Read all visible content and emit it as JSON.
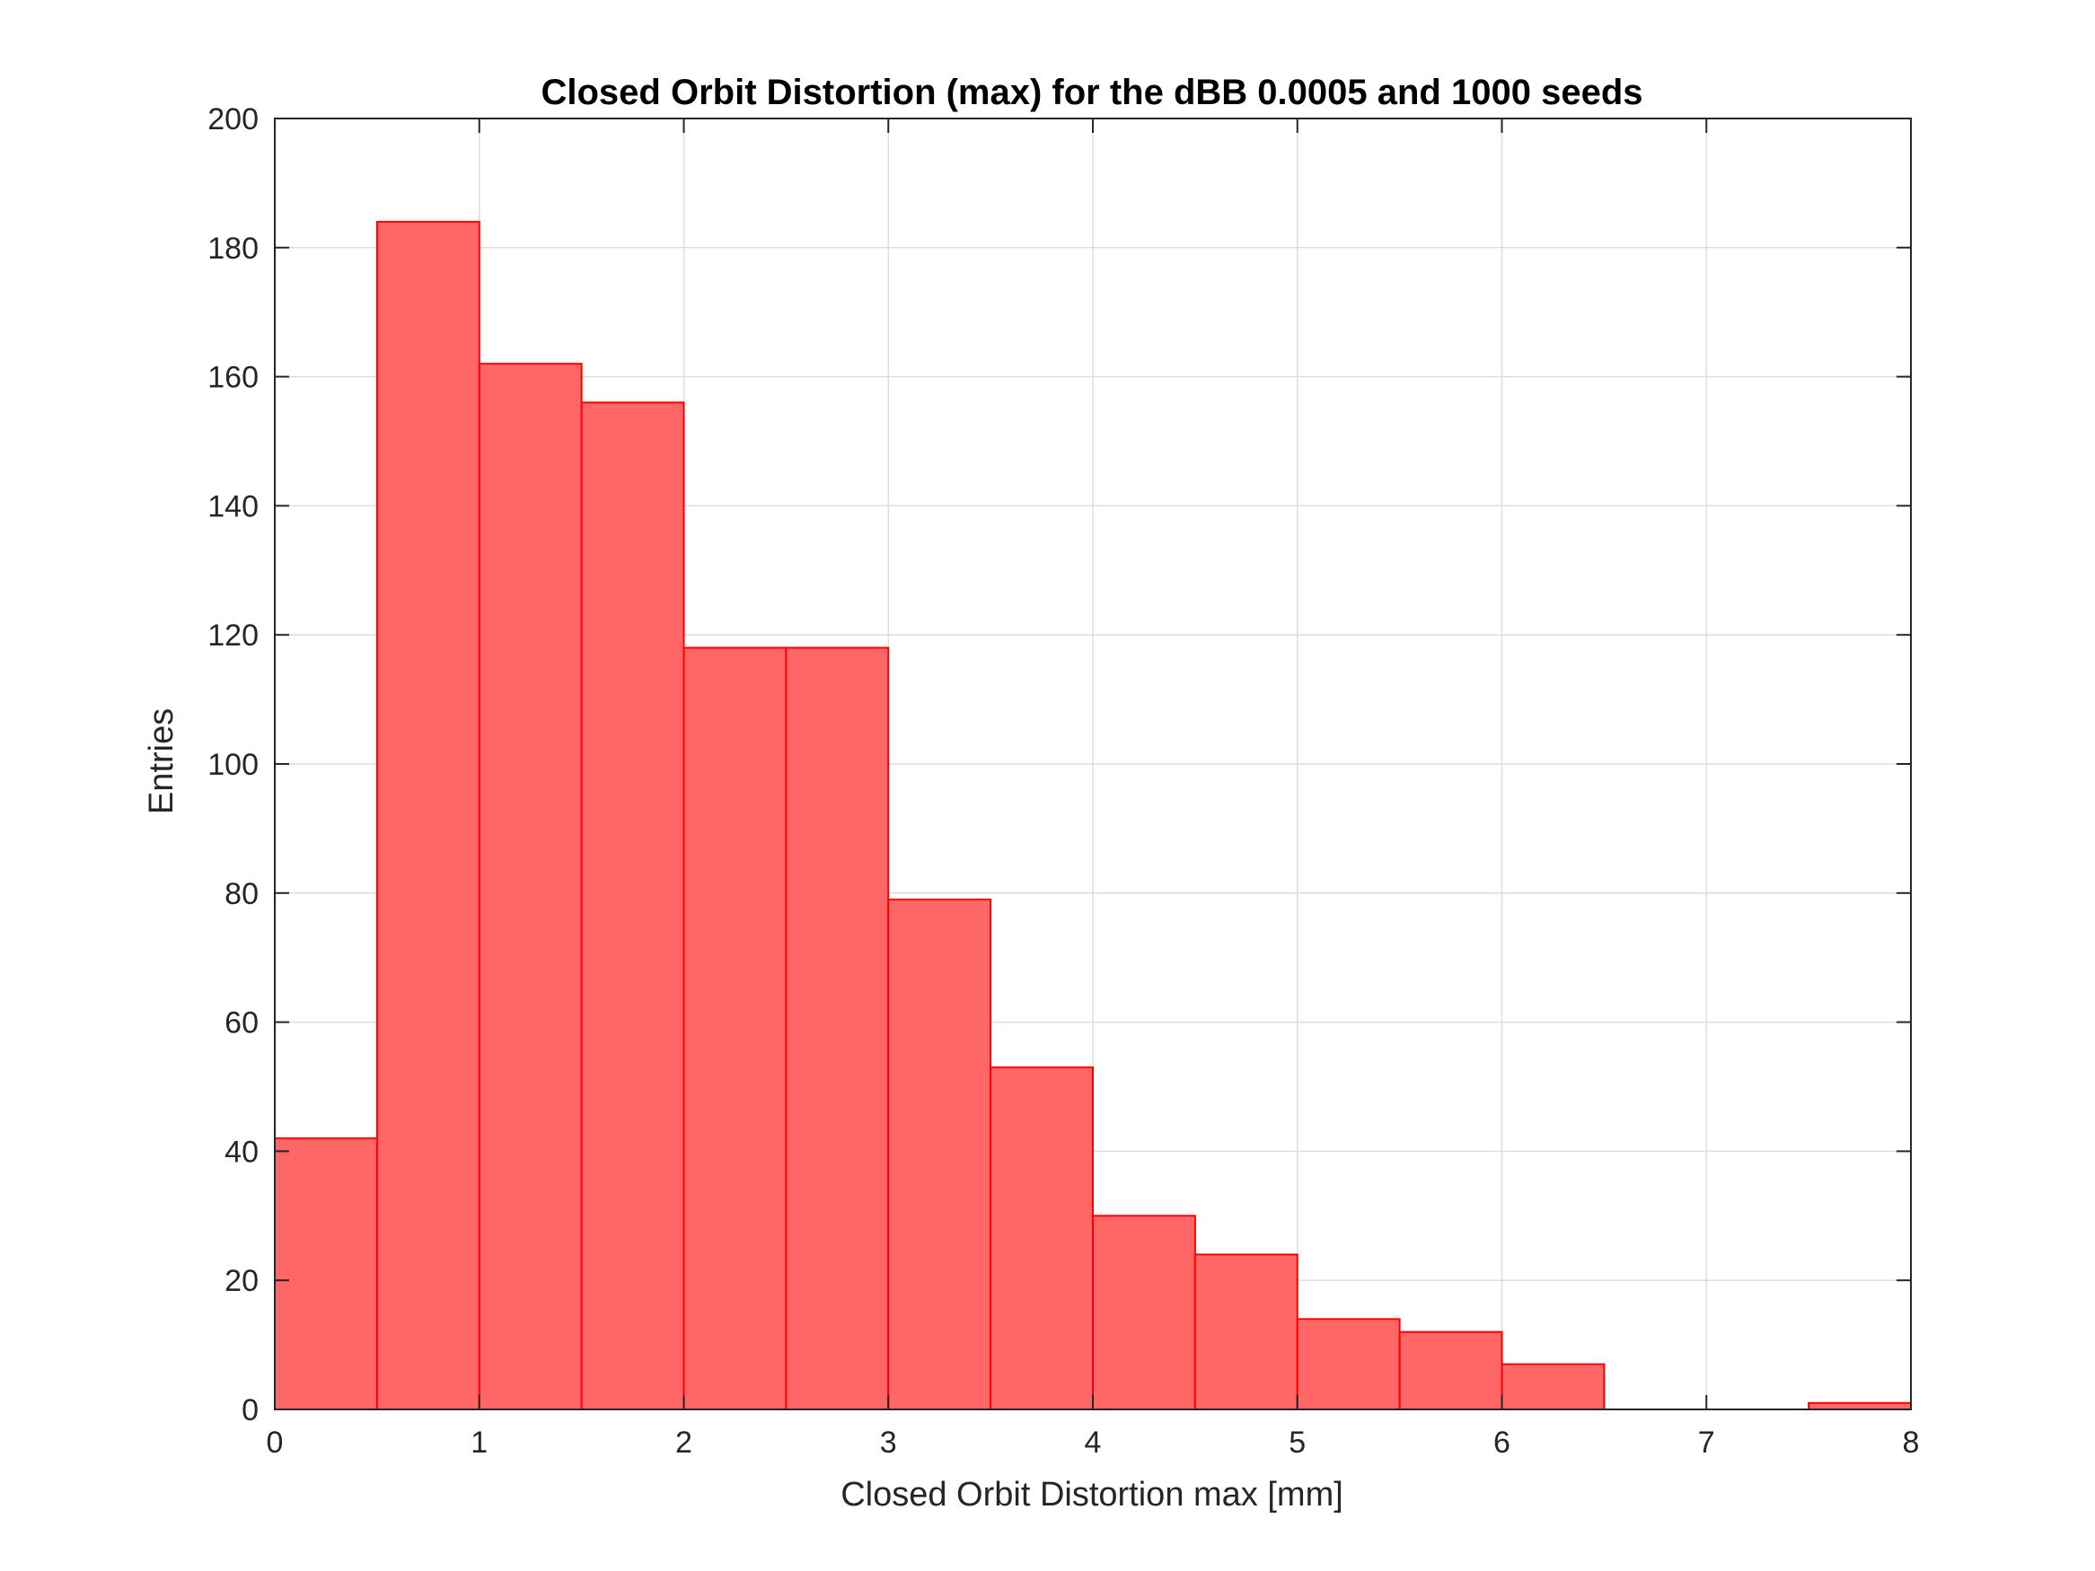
{
  "chart_data": {
    "type": "bar",
    "title": "Closed Orbit Distortion (max) for the dBB 0.0005 and 1000 seeds",
    "xlabel": "Closed Orbit Distortion max [mm]",
    "ylabel": "Entries",
    "xlim": [
      0,
      8
    ],
    "ylim": [
      0,
      200
    ],
    "xticks": [
      "0",
      "1",
      "2",
      "3",
      "4",
      "5",
      "6",
      "7",
      "8"
    ],
    "yticks": [
      "0",
      "20",
      "40",
      "60",
      "80",
      "100",
      "120",
      "140",
      "160",
      "180",
      "200"
    ],
    "grid": true,
    "bin_edges": [
      0,
      0.5,
      1,
      1.5,
      2,
      2.5,
      3,
      3.5,
      4,
      4.5,
      5,
      5.5,
      6,
      6.5,
      7,
      7.5,
      8
    ],
    "values": [
      42,
      184,
      162,
      156,
      118,
      118,
      79,
      53,
      30,
      24,
      14,
      12,
      7,
      0,
      0,
      1
    ],
    "bar_color": "#ff6666",
    "edge_color": "#ff0000"
  }
}
